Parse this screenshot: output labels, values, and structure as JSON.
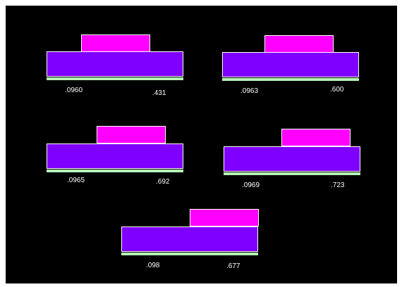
{
  "colors": {
    "background": "#000000",
    "top_layer": "#ff00ff",
    "middle_layer": "#7f00ff",
    "base_layer": "#b6f5b6",
    "outline": "#ffffff",
    "text": "#ffffff"
  },
  "panels": [
    {
      "left_label": ".0960",
      "right_label": ".431"
    },
    {
      "left_label": ".0963",
      "right_label": ".600"
    },
    {
      "left_label": ".0965",
      "right_label": ".692"
    },
    {
      "left_label": ".0969",
      "right_label": ".723"
    },
    {
      "left_label": ".098",
      "right_label": ".677"
    }
  ]
}
